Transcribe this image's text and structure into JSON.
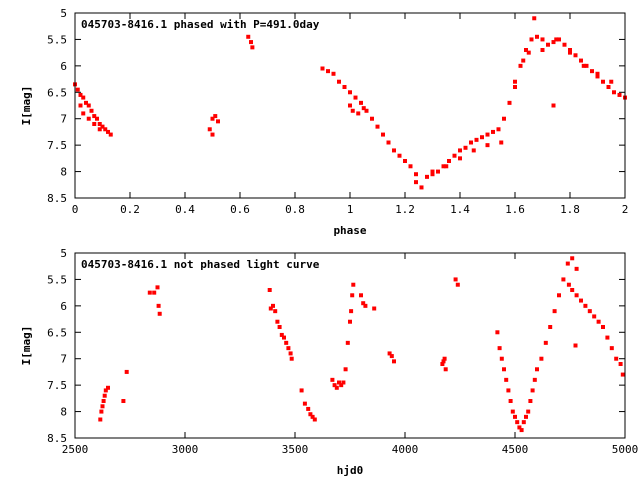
{
  "chart_data": [
    {
      "type": "scatter",
      "title": "045703-8416.1 phased with P=491.0day",
      "xlabel": "phase",
      "ylabel": "I[mag]",
      "xlim": [
        0,
        2
      ],
      "ylim": [
        8.5,
        5
      ],
      "y_inverted": true,
      "x_ticks": [
        "0",
        "0.2",
        "0.4",
        "0.6",
        "0.8",
        "1",
        "1.2",
        "1.4",
        "1.6",
        "1.8",
        "2"
      ],
      "y_ticks": [
        "5",
        "5.5",
        "6",
        "6.5",
        "7",
        "7.5",
        "8",
        "8.5"
      ],
      "grid": false,
      "marker_color": "#ff0000",
      "series": [
        {
          "x": [
            0.0,
            0.01,
            0.02,
            0.03,
            0.04,
            0.05,
            0.06,
            0.07,
            0.08,
            0.09,
            0.1,
            0.11,
            0.12,
            0.13,
            0.02,
            0.03,
            0.05,
            0.07,
            0.09,
            0.49,
            0.5,
            0.51,
            0.52,
            0.5,
            0.63,
            0.64,
            0.645,
            0.9,
            0.92,
            0.94,
            0.96,
            0.98,
            1.0,
            1.02,
            1.04,
            1.06,
            1.08,
            1.1,
            1.12,
            1.14,
            1.16,
            1.18,
            1.2,
            1.22,
            1.24,
            1.0,
            1.01,
            1.03,
            1.05,
            1.24,
            1.26,
            1.28,
            1.3,
            1.32,
            1.34,
            1.36,
            1.38,
            1.4,
            1.42,
            1.44,
            1.46,
            1.48,
            1.5,
            1.52,
            1.54,
            1.56,
            1.58,
            1.6,
            1.3,
            1.35,
            1.4,
            1.45,
            1.5,
            1.55,
            1.6,
            1.62,
            1.64,
            1.66,
            1.67,
            1.68,
            1.7,
            1.72,
            1.74,
            1.76,
            1.78,
            1.8,
            1.82,
            1.84,
            1.86,
            1.88,
            1.9,
            1.92,
            1.94,
            1.96,
            1.98,
            2.0,
            1.63,
            1.65,
            1.7,
            1.75,
            1.8,
            1.85,
            1.9,
            1.95,
            1.74
          ],
          "y": [
            6.35,
            6.45,
            6.55,
            6.6,
            6.7,
            6.75,
            6.85,
            6.95,
            7.0,
            7.1,
            7.15,
            7.2,
            7.25,
            7.3,
            6.75,
            6.9,
            7.0,
            7.1,
            7.2,
            7.2,
            7.0,
            6.95,
            7.05,
            7.3,
            5.45,
            5.55,
            5.65,
            6.05,
            6.1,
            6.15,
            6.3,
            6.4,
            6.5,
            6.6,
            6.7,
            6.85,
            7.0,
            7.15,
            7.3,
            7.45,
            7.6,
            7.7,
            7.8,
            7.9,
            8.05,
            6.75,
            6.85,
            6.9,
            6.8,
            8.2,
            8.3,
            8.1,
            8.05,
            8.0,
            7.9,
            7.8,
            7.7,
            7.6,
            7.55,
            7.45,
            7.4,
            7.35,
            7.3,
            7.25,
            7.2,
            7.0,
            6.7,
            6.3,
            8.0,
            7.9,
            7.75,
            7.6,
            7.5,
            7.45,
            6.4,
            6.0,
            5.7,
            5.5,
            5.1,
            5.45,
            5.5,
            5.6,
            5.55,
            5.5,
            5.6,
            5.7,
            5.8,
            5.9,
            6.0,
            6.1,
            6.2,
            6.3,
            6.4,
            6.5,
            6.55,
            6.6,
            5.9,
            5.75,
            5.7,
            5.5,
            5.75,
            6.0,
            6.15,
            6.3,
            6.75
          ]
        }
      ]
    },
    {
      "type": "scatter",
      "title": "045703-8416.1 not phased light curve",
      "xlabel": "hjd0",
      "ylabel": "I[mag]",
      "xlim": [
        2500,
        5000
      ],
      "ylim": [
        8.5,
        5
      ],
      "y_inverted": true,
      "x_ticks": [
        "2500",
        "3000",
        "3500",
        "4000",
        "4500",
        "5000"
      ],
      "y_ticks": [
        "5",
        "5.5",
        "6",
        "6.5",
        "7",
        "7.5",
        "8",
        "8.5"
      ],
      "grid": false,
      "marker_color": "#ff0000",
      "series": [
        {
          "x": [
            2615,
            2620,
            2625,
            2630,
            2635,
            2640,
            2650,
            2720,
            2735,
            2840,
            2860,
            2875,
            2880,
            2885,
            3385,
            3390,
            3400,
            3410,
            3420,
            3430,
            3440,
            3450,
            3460,
            3470,
            3480,
            3485,
            3530,
            3545,
            3560,
            3570,
            3580,
            3590,
            3670,
            3680,
            3690,
            3700,
            3710,
            3720,
            3730,
            3740,
            3750,
            3755,
            3760,
            3765,
            3800,
            3810,
            3820,
            3860,
            3930,
            3940,
            3950,
            4170,
            4175,
            4180,
            4185,
            4230,
            4240,
            4420,
            4430,
            4440,
            4450,
            4460,
            4470,
            4480,
            4490,
            4500,
            4510,
            4520,
            4530,
            4540,
            4550,
            4560,
            4570,
            4580,
            4590,
            4600,
            4620,
            4640,
            4660,
            4680,
            4700,
            4720,
            4740,
            4760,
            4780,
            4745,
            4760,
            4780,
            4800,
            4820,
            4840,
            4860,
            4880,
            4900,
            4920,
            4940,
            4960,
            4980,
            4990,
            4775
          ],
          "y": [
            8.15,
            8.0,
            7.9,
            7.8,
            7.7,
            7.6,
            7.55,
            7.8,
            7.25,
            5.75,
            5.75,
            5.65,
            6.0,
            6.15,
            5.7,
            6.05,
            6.0,
            6.1,
            6.3,
            6.4,
            6.55,
            6.6,
            6.7,
            6.8,
            6.9,
            7.0,
            7.6,
            7.85,
            7.95,
            8.05,
            8.1,
            8.15,
            7.4,
            7.5,
            7.55,
            7.45,
            7.5,
            7.45,
            7.2,
            6.7,
            6.3,
            6.1,
            5.8,
            5.6,
            5.8,
            5.95,
            6.0,
            6.05,
            6.9,
            6.95,
            7.05,
            7.1,
            7.05,
            7.0,
            7.2,
            5.5,
            5.6,
            6.5,
            6.8,
            7.0,
            7.2,
            7.4,
            7.6,
            7.8,
            8.0,
            8.1,
            8.2,
            8.3,
            8.35,
            8.2,
            8.1,
            8.0,
            7.8,
            7.6,
            7.4,
            7.2,
            7.0,
            6.7,
            6.4,
            6.1,
            5.8,
            5.5,
            5.2,
            5.1,
            5.3,
            5.6,
            5.7,
            5.8,
            5.9,
            6.0,
            6.1,
            6.2,
            6.3,
            6.4,
            6.6,
            6.8,
            7.0,
            7.1,
            7.3,
            6.75
          ]
        }
      ]
    }
  ]
}
